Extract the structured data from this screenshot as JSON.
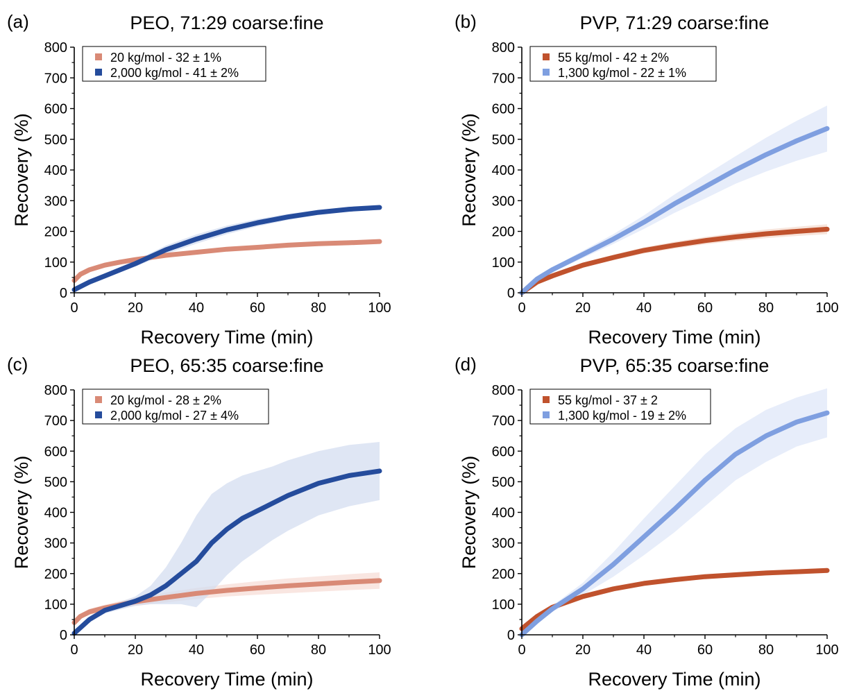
{
  "chart_data": [
    {
      "panel_label": "(a)",
      "type": "line",
      "title": "PEO, 71:29 coarse:fine",
      "xlabel": "Recovery Time (min)",
      "ylabel": "Recovery (%)",
      "xlim": [
        0,
        100
      ],
      "ylim": [
        0,
        800
      ],
      "xticks": [
        "0",
        "20",
        "40",
        "60",
        "80",
        "100"
      ],
      "yticks": [
        "0",
        "100",
        "200",
        "300",
        "400",
        "500",
        "600",
        "700",
        "800"
      ],
      "legend_position": "top-left",
      "series": [
        {
          "name": "20 kg/mol - 32 ± 1%",
          "color": "#d98a76",
          "band_color": "#f6dcd4",
          "x": [
            0,
            2,
            5,
            10,
            15,
            20,
            30,
            40,
            50,
            60,
            70,
            80,
            90,
            100
          ],
          "y": [
            40,
            60,
            75,
            90,
            100,
            108,
            122,
            132,
            142,
            148,
            155,
            160,
            163,
            167
          ],
          "err": [
            5,
            5,
            5,
            5,
            5,
            5,
            5,
            5,
            5,
            5,
            5,
            5,
            5,
            5
          ]
        },
        {
          "name": "2,000 kg/mol - 41 ± 2%",
          "color": "#254c9c",
          "band_color": "#d2dcf0",
          "x": [
            0,
            5,
            10,
            20,
            30,
            40,
            50,
            60,
            70,
            80,
            90,
            100
          ],
          "y": [
            10,
            35,
            55,
            95,
            140,
            175,
            205,
            228,
            247,
            262,
            272,
            278
          ],
          "err": [
            5,
            5,
            8,
            10,
            14,
            15,
            14,
            12,
            10,
            8,
            6,
            5
          ]
        }
      ]
    },
    {
      "panel_label": "(b)",
      "type": "line",
      "title": "PVP, 71:29 coarse:fine",
      "xlabel": "Recovery Time (min)",
      "ylabel": "Recovery (%)",
      "xlim": [
        0,
        100
      ],
      "ylim": [
        0,
        800
      ],
      "xticks": [
        "0",
        "20",
        "40",
        "60",
        "80",
        "100"
      ],
      "yticks": [
        "0",
        "100",
        "200",
        "300",
        "400",
        "500",
        "600",
        "700",
        "800"
      ],
      "legend_position": "top-left",
      "series": [
        {
          "name": "55 kg/mol - 42 ± 2%",
          "color": "#c0522d",
          "band_color": "#f3d8cc",
          "x": [
            0,
            5,
            10,
            20,
            30,
            40,
            50,
            60,
            70,
            80,
            90,
            100
          ],
          "y": [
            0,
            35,
            55,
            90,
            115,
            138,
            155,
            170,
            182,
            192,
            200,
            207
          ],
          "err": [
            3,
            5,
            6,
            8,
            9,
            10,
            11,
            12,
            13,
            14,
            15,
            16
          ]
        },
        {
          "name": "1,300 kg/mol - 22 ± 1%",
          "color": "#7f9fe0",
          "band_color": "#dde6f8",
          "x": [
            0,
            5,
            10,
            20,
            30,
            40,
            50,
            60,
            70,
            80,
            90,
            100
          ],
          "y": [
            0,
            45,
            75,
            125,
            175,
            230,
            290,
            345,
            400,
            450,
            495,
            535
          ],
          "err": [
            3,
            5,
            8,
            12,
            16,
            22,
            30,
            38,
            45,
            55,
            65,
            75
          ]
        }
      ]
    },
    {
      "panel_label": "(c)",
      "type": "line",
      "title": "PEO, 65:35 coarse:fine",
      "xlabel": "Recovery Time (min)",
      "ylabel": "Recovery (%)",
      "xlim": [
        0,
        100
      ],
      "ylim": [
        0,
        800
      ],
      "xticks": [
        "0",
        "20",
        "40",
        "60",
        "80",
        "100"
      ],
      "yticks": [
        "0",
        "100",
        "200",
        "300",
        "400",
        "500",
        "600",
        "700",
        "800"
      ],
      "legend_position": "top-left",
      "series": [
        {
          "name": "20 kg/mol - 28 ± 2%",
          "color": "#d98a76",
          "band_color": "#f6dcd4",
          "x": [
            0,
            2,
            5,
            10,
            15,
            20,
            30,
            40,
            50,
            60,
            70,
            80,
            90,
            100
          ],
          "y": [
            40,
            60,
            75,
            88,
            98,
            108,
            122,
            135,
            145,
            153,
            160,
            166,
            172,
            177
          ],
          "err": [
            8,
            8,
            10,
            10,
            12,
            14,
            16,
            18,
            20,
            22,
            24,
            25,
            26,
            27
          ]
        },
        {
          "name": "2,000 kg/mol - 27 ± 4%",
          "color": "#254c9c",
          "band_color": "#d2dcf0",
          "x": [
            0,
            5,
            10,
            20,
            25,
            30,
            35,
            40,
            45,
            50,
            55,
            60,
            65,
            70,
            80,
            90,
            100
          ],
          "y": [
            5,
            50,
            80,
            110,
            130,
            160,
            200,
            240,
            300,
            345,
            380,
            405,
            430,
            455,
            495,
            520,
            535
          ],
          "err": [
            5,
            8,
            10,
            15,
            30,
            60,
            100,
            150,
            160,
            150,
            140,
            130,
            120,
            115,
            105,
            100,
            95
          ]
        }
      ]
    },
    {
      "panel_label": "(d)",
      "type": "line",
      "title": "PVP, 65:35 coarse:fine",
      "xlabel": "Recovery Time (min)",
      "ylabel": "Recovery (%)",
      "xlim": [
        0,
        100
      ],
      "ylim": [
        0,
        800
      ],
      "xticks": [
        "0",
        "20",
        "40",
        "60",
        "80",
        "100"
      ],
      "yticks": [
        "0",
        "100",
        "200",
        "300",
        "400",
        "500",
        "600",
        "700",
        "800"
      ],
      "legend_position": "top-left",
      "series": [
        {
          "name": "55 kg/mol - 37 ± 2",
          "color": "#c0522d",
          "band_color": "#f3d8cc",
          "x": [
            0,
            5,
            10,
            20,
            30,
            40,
            50,
            60,
            70,
            80,
            90,
            100
          ],
          "y": [
            20,
            60,
            90,
            125,
            150,
            168,
            180,
            190,
            196,
            202,
            206,
            210
          ],
          "err": [
            3,
            4,
            5,
            6,
            6,
            7,
            7,
            8,
            8,
            8,
            8,
            8
          ]
        },
        {
          "name": "1,300 kg/mol - 19 ± 2%",
          "color": "#7f9fe0",
          "band_color": "#dde6f8",
          "x": [
            0,
            5,
            10,
            20,
            30,
            40,
            50,
            60,
            70,
            80,
            90,
            100
          ],
          "y": [
            0,
            45,
            85,
            150,
            230,
            320,
            410,
            505,
            590,
            650,
            695,
            725
          ],
          "err": [
            3,
            5,
            10,
            20,
            40,
            60,
            75,
            85,
            85,
            85,
            80,
            80
          ]
        }
      ]
    }
  ]
}
